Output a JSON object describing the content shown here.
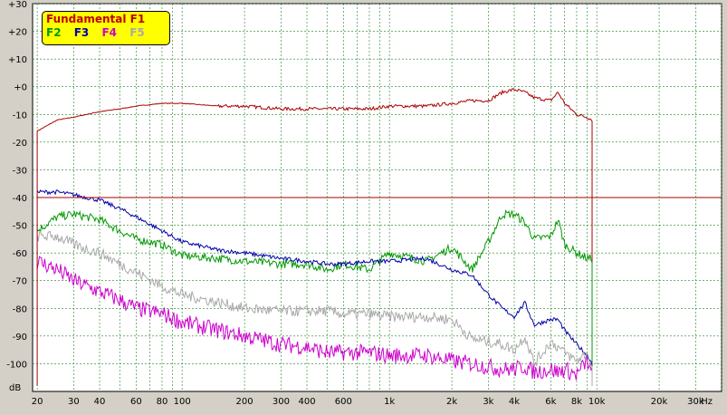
{
  "chart_data": {
    "type": "line",
    "xscale": "log",
    "x_unit_label": "Hz",
    "y_unit_label": "dB",
    "xlim": [
      19,
      40000
    ],
    "ylim": [
      -110,
      30
    ],
    "grid": true,
    "xticks": [
      {
        "v": 20,
        "t": "20"
      },
      {
        "v": 30,
        "t": "30"
      },
      {
        "v": 40,
        "t": "40"
      },
      {
        "v": 60,
        "t": "60"
      },
      {
        "v": 80,
        "t": "80"
      },
      {
        "v": 100,
        "t": "100"
      },
      {
        "v": 200,
        "t": "200"
      },
      {
        "v": 300,
        "t": "300"
      },
      {
        "v": 400,
        "t": "400"
      },
      {
        "v": 600,
        "t": "600"
      },
      {
        "v": 1000,
        "t": "1k"
      },
      {
        "v": 2000,
        "t": "2k"
      },
      {
        "v": 3000,
        "t": "3k"
      },
      {
        "v": 4000,
        "t": "4k"
      },
      {
        "v": 6000,
        "t": "6k"
      },
      {
        "v": 8000,
        "t": "8k"
      },
      {
        "v": 10000,
        "t": "10k"
      },
      {
        "v": 20000,
        "t": "20k"
      },
      {
        "v": 30000,
        "t": "30k"
      }
    ],
    "yticks": [
      {
        "v": 30,
        "t": "+30"
      },
      {
        "v": 20,
        "t": "+20"
      },
      {
        "v": 10,
        "t": "+10"
      },
      {
        "v": 0,
        "t": "+0"
      },
      {
        "v": -10,
        "t": "-10"
      },
      {
        "v": -20,
        "t": "-20"
      },
      {
        "v": -30,
        "t": "-30"
      },
      {
        "v": -40,
        "t": "-40"
      },
      {
        "v": -50,
        "t": "-50"
      },
      {
        "v": -60,
        "t": "-60"
      },
      {
        "v": -70,
        "t": "-70"
      },
      {
        "v": -80,
        "t": "-80"
      },
      {
        "v": -90,
        "t": "-90"
      },
      {
        "v": -100,
        "t": "-100"
      }
    ],
    "legend": {
      "title": "Fundamental F1",
      "entries": [
        {
          "label": "F2",
          "color": "#009900"
        },
        {
          "label": "F3",
          "color": "#0000aa"
        },
        {
          "label": "F4",
          "color": "#cc00cc"
        },
        {
          "label": "F5",
          "color": "#aaaaaa"
        }
      ]
    },
    "reference_line": {
      "y": -40,
      "color": "#aa0000"
    },
    "series": [
      {
        "name": "Fundamental F1",
        "color": "#aa0000",
        "x": [
          20,
          25,
          30,
          40,
          50,
          60,
          80,
          100,
          150,
          200,
          300,
          400,
          500,
          600,
          800,
          1000,
          1500,
          2000,
          2500,
          3000,
          3500,
          4000,
          4500,
          5000,
          6000,
          6500,
          7000,
          8000,
          9000,
          9500
        ],
        "y": [
          -16,
          -12,
          -11,
          -9,
          -8,
          -7,
          -6,
          -6,
          -7,
          -7,
          -8,
          -8,
          -8,
          -8,
          -8,
          -7,
          -7,
          -6,
          -5,
          -5,
          -2,
          -1,
          -2,
          -4,
          -5,
          -2,
          -6,
          -10,
          -11,
          -12
        ]
      },
      {
        "name": "F2",
        "color": "#009900",
        "x": [
          20,
          25,
          30,
          40,
          50,
          60,
          80,
          100,
          150,
          200,
          300,
          400,
          500,
          600,
          800,
          1000,
          1500,
          2000,
          2500,
          3000,
          3500,
          4000,
          4500,
          5000,
          6000,
          6500,
          7000,
          8000,
          9000,
          9500
        ],
        "y": [
          -52,
          -47,
          -46,
          -48,
          -52,
          -55,
          -57,
          -61,
          -62,
          -63,
          -64,
          -64,
          -66,
          -64,
          -66,
          -60,
          -63,
          -58,
          -66,
          -56,
          -46,
          -46,
          -49,
          -55,
          -54,
          -48,
          -57,
          -60,
          -62,
          -62
        ]
      },
      {
        "name": "F3",
        "color": "#0000aa",
        "x": [
          20,
          25,
          30,
          40,
          50,
          60,
          80,
          100,
          150,
          200,
          300,
          400,
          500,
          600,
          800,
          1000,
          1500,
          2000,
          2500,
          3000,
          3500,
          4000,
          4500,
          5000,
          6000,
          6500,
          7000,
          8000,
          9000,
          9500
        ],
        "y": [
          -38,
          -38,
          -39,
          -41,
          -44,
          -47,
          -52,
          -56,
          -59,
          -60,
          -62,
          -63,
          -64,
          -64,
          -63,
          -63,
          -62,
          -66,
          -68,
          -75,
          -80,
          -83,
          -78,
          -86,
          -84,
          -84,
          -88,
          -93,
          -97,
          -100
        ]
      },
      {
        "name": "F4",
        "color": "#cc00cc",
        "x": [
          20,
          25,
          30,
          40,
          50,
          60,
          80,
          100,
          150,
          200,
          300,
          400,
          500,
          600,
          800,
          1000,
          1500,
          2000,
          2500,
          3000,
          3500,
          4000,
          4500,
          5000,
          6000,
          6500,
          7000,
          8000,
          9000,
          9500
        ],
        "y": [
          -63,
          -66,
          -70,
          -74,
          -77,
          -80,
          -82,
          -85,
          -88,
          -90,
          -93,
          -94,
          -96,
          -96,
          -96,
          -97,
          -97,
          -99,
          -100,
          -101,
          -102,
          -102,
          -101,
          -103,
          -102,
          -103,
          -102,
          -104,
          -99,
          -104
        ]
      },
      {
        "name": "F5",
        "color": "#aaaaaa",
        "x": [
          20,
          25,
          30,
          40,
          50,
          60,
          80,
          100,
          150,
          200,
          300,
          400,
          500,
          600,
          800,
          1000,
          1500,
          2000,
          2500,
          3000,
          3500,
          4000,
          4500,
          5000,
          6000,
          6500,
          7000,
          8000,
          9000,
          9500
        ],
        "y": [
          -54,
          -54,
          -57,
          -60,
          -64,
          -67,
          -72,
          -75,
          -78,
          -80,
          -81,
          -81,
          -81,
          -82,
          -82,
          -83,
          -83,
          -84,
          -91,
          -92,
          -93,
          -95,
          -90,
          -100,
          -92,
          -94,
          -96,
          -99,
          -96,
          -102
        ]
      }
    ]
  }
}
